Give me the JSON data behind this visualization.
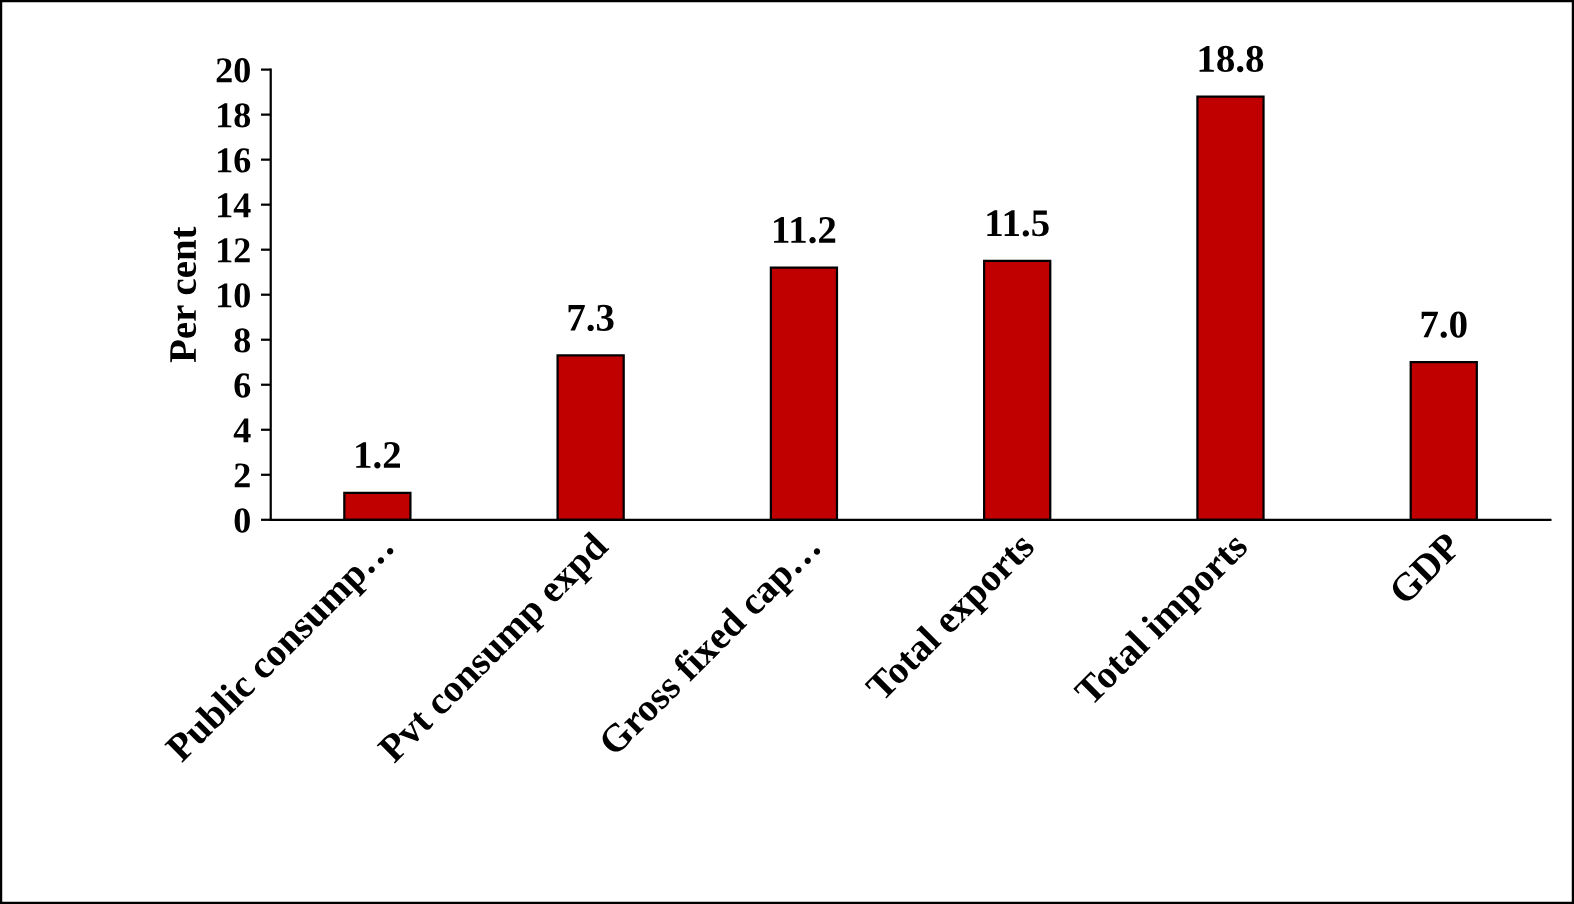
{
  "chart_data": {
    "type": "bar",
    "ylabel": "Per cent",
    "categories": [
      "Public consump…",
      "Pvt consump expd",
      "Gross fixed cap…",
      "Total exports",
      "Total imports",
      "GDP"
    ],
    "values": [
      1.2,
      7.3,
      11.2,
      11.5,
      18.8,
      7.0
    ],
    "value_labels": [
      "1.2",
      "7.3",
      "11.2",
      "11.5",
      "18.8",
      "7.0"
    ],
    "color": "#c00000",
    "ylim": [
      0,
      20
    ],
    "yticks": [
      0,
      2,
      4,
      6,
      8,
      10,
      12,
      14,
      16,
      18,
      20
    ],
    "grid": false,
    "legend": false
  }
}
